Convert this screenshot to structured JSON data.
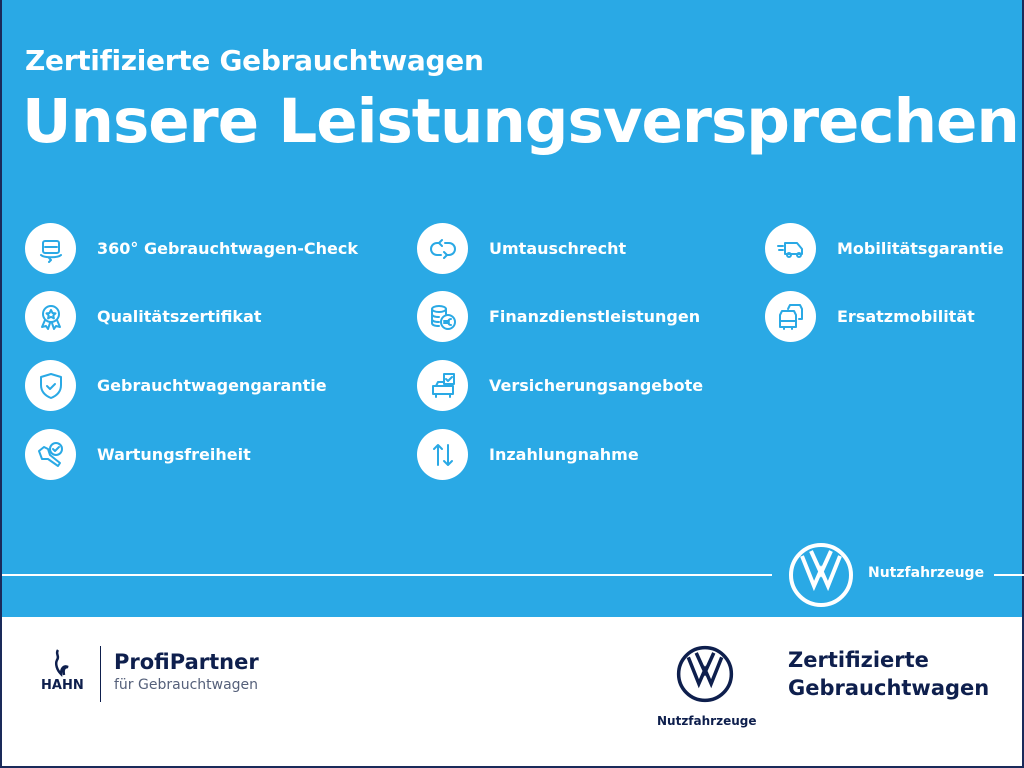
{
  "header": {
    "subtitle": "Zertifizierte Gebrauchtwagen",
    "title": "Unsere Leistungsversprechen"
  },
  "services": [
    {
      "label": "360° Gebrauchtwagen-Check",
      "icon": "car-360-icon"
    },
    {
      "label": "Qualitätszertifikat",
      "icon": "award-star-icon"
    },
    {
      "label": "Gebrauchtwagengarantie",
      "icon": "shield-check-icon"
    },
    {
      "label": "Wartungsfreiheit",
      "icon": "wrench-check-icon"
    },
    {
      "label": "Umtauschrecht",
      "icon": "exchange-arrows-icon"
    },
    {
      "label": "Finanzdienstleistungen",
      "icon": "coins-euro-icon"
    },
    {
      "label": "Versicherungsangebote",
      "icon": "car-document-icon"
    },
    {
      "label": "Inzahlungnahme",
      "icon": "up-down-arrows-icon"
    },
    {
      "label": "Mobilitätsgarantie",
      "icon": "van-speed-icon"
    },
    {
      "label": "Ersatzmobilität",
      "icon": "two-cars-icon"
    }
  ],
  "brand_band": {
    "label": "Nutzfahrzeuge"
  },
  "footer": {
    "dealer_logo": "HAHN",
    "partner_title": "ProfiPartner",
    "partner_sub": "für Gebrauchtwagen",
    "vw_label": "Nutzfahrzeuge",
    "cert_line1": "Zertifizierte",
    "cert_line2": "Gebrauchtwagen"
  },
  "colors": {
    "primary_blue": "#2aa9e5",
    "navy": "#0e1f4d",
    "white": "#ffffff"
  }
}
